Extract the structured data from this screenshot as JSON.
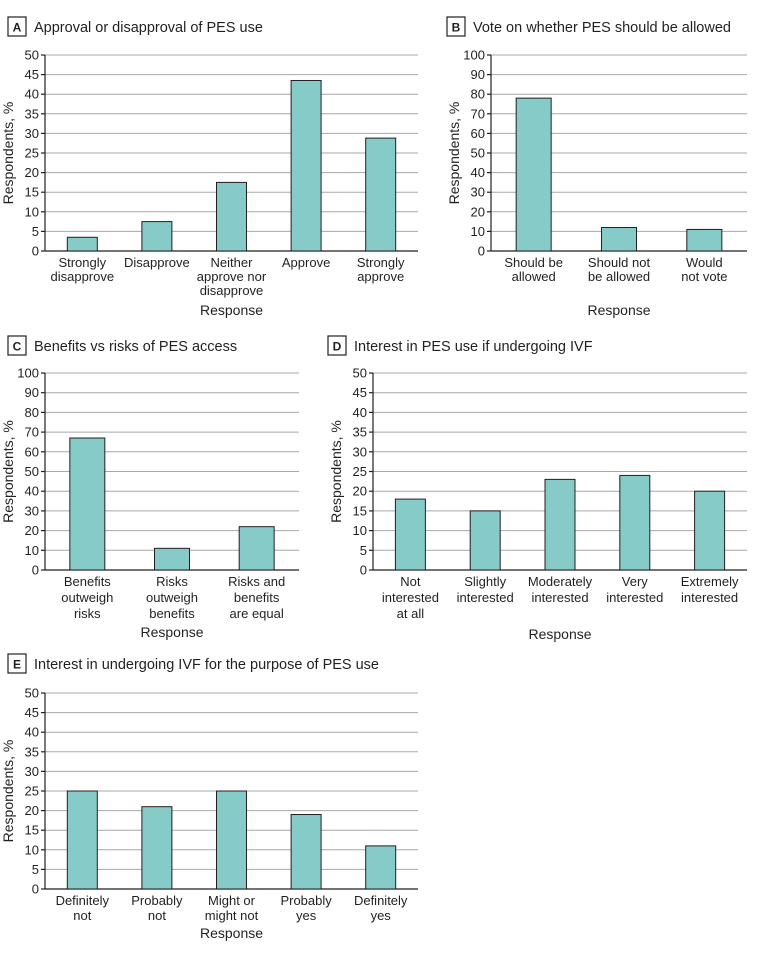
{
  "chart_data": [
    {
      "panel": "A",
      "type": "bar",
      "title": "Approval or disapproval of PES use",
      "xlabel": "Response",
      "ylabel": "Respondents, %",
      "ylim": [
        0,
        50
      ],
      "ytick_step": 5,
      "categories": [
        "Strongly\ndisapprove",
        "Disapprove",
        "Neither\napprove nor\ndisapprove",
        "Approve",
        "Strongly\napprove"
      ],
      "values": [
        3.5,
        7.5,
        17.5,
        43.5,
        28.8
      ]
    },
    {
      "panel": "B",
      "type": "bar",
      "title": "Vote on whether PES should be allowed",
      "xlabel": "Response",
      "ylabel": "Respondents, %",
      "ylim": [
        0,
        100
      ],
      "ytick_step": 10,
      "categories": [
        "Should be\nallowed",
        "Should not\nbe allowed",
        "Would\nnot vote"
      ],
      "values": [
        78,
        12,
        11
      ]
    },
    {
      "panel": "C",
      "type": "bar",
      "title": "Benefits vs risks of PES access",
      "xlabel": "Response",
      "ylabel": "Respondents, %",
      "ylim": [
        0,
        100
      ],
      "ytick_step": 10,
      "categories": [
        "Benefits\noutweigh\nrisks",
        "Risks\noutweigh\nbenefits",
        "Risks and\nbenefits\nare equal"
      ],
      "values": [
        67,
        11,
        22
      ]
    },
    {
      "panel": "D",
      "type": "bar",
      "title": "Interest in PES use if undergoing IVF",
      "xlabel": "Response",
      "ylabel": "Respondents, %",
      "ylim": [
        0,
        50
      ],
      "ytick_step": 5,
      "categories": [
        "Not\ninterested\nat all",
        "Slightly\ninterested",
        "Moderately\ninterested",
        "Very\ninterested",
        "Extremely\ninterested"
      ],
      "values": [
        18,
        15,
        23,
        24,
        20
      ]
    },
    {
      "panel": "E",
      "type": "bar",
      "title": "Interest in undergoing IVF for the purpose of PES use",
      "xlabel": "Response",
      "ylabel": "Respondents, %",
      "ylim": [
        0,
        50
      ],
      "ytick_step": 5,
      "categories": [
        "Definitely\nnot",
        "Probably\nnot",
        "Might or\nmight not",
        "Probably\nyes",
        "Definitely\nyes"
      ],
      "values": [
        25,
        21,
        25,
        19,
        11
      ]
    }
  ]
}
